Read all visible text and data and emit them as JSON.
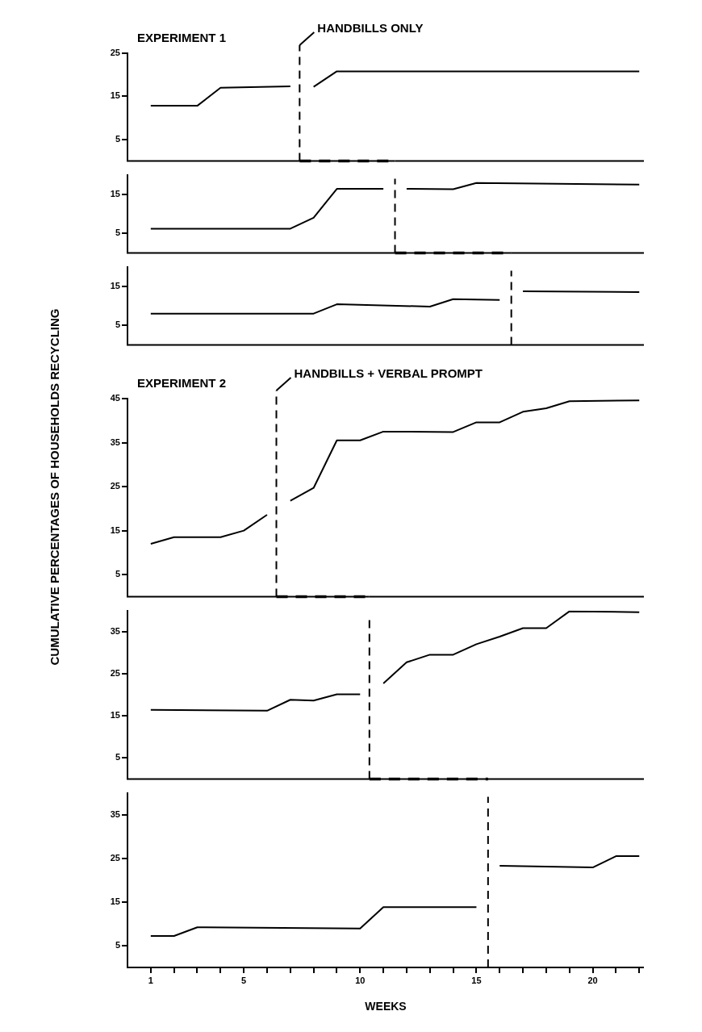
{
  "chart_data": [
    {
      "type": "line",
      "title": "EXPERIMENT 1",
      "xlim": [
        0,
        22.2
      ],
      "ylim": [
        0,
        25
      ],
      "yticks": [
        5,
        15,
        25
      ],
      "tick_labels": "y",
      "ref_lines": [
        {
          "axis": "x",
          "value": 7.4,
          "label": "HANDBILLS ONLY",
          "line_style": "dashed"
        }
      ],
      "series": [
        {
          "color": "#000000",
          "x": [
            1,
            3,
            4,
            7
          ],
          "values": [
            12.8,
            12.8,
            17,
            17.3
          ]
        },
        {
          "color": "#000000",
          "x": [
            8,
            9,
            22
          ],
          "values": [
            17.2,
            20.8,
            20.8
          ]
        }
      ]
    },
    {
      "type": "line",
      "xlim": [
        0,
        22.2
      ],
      "ylim": [
        0,
        20
      ],
      "yticks": [
        5,
        15
      ],
      "tick_labels": "y",
      "ref_lines": [
        {
          "axis": "x",
          "value": 11.5,
          "line_style": "dashed"
        }
      ],
      "series": [
        {
          "color": "#000000",
          "x": [
            1,
            7,
            8,
            9,
            11
          ],
          "values": [
            6.2,
            6.2,
            9,
            16.4,
            16.4
          ]
        },
        {
          "color": "#000000",
          "x": [
            12,
            14,
            15,
            22
          ],
          "values": [
            16.4,
            16.3,
            17.9,
            17.5
          ]
        }
      ]
    },
    {
      "type": "line",
      "xlim": [
        0,
        22.2
      ],
      "ylim": [
        0,
        20
      ],
      "yticks": [
        5,
        15
      ],
      "tick_labels": "y",
      "ref_lines": [
        {
          "axis": "x",
          "value": 16.5,
          "line_style": "dashed"
        }
      ],
      "series": [
        {
          "color": "#000000",
          "x": [
            1,
            8,
            9,
            13,
            14,
            16
          ],
          "values": [
            8,
            8,
            10.4,
            9.8,
            11.7,
            11.5
          ]
        },
        {
          "color": "#000000",
          "x": [
            17,
            22
          ],
          "values": [
            13.7,
            13.5
          ]
        }
      ]
    },
    {
      "type": "line",
      "title": "EXPERIMENT 2",
      "ylabel": "CUMULATIVE PERCENTAGES OF HOUSEHOLDS RECYCLING",
      "xlim": [
        0,
        22.2
      ],
      "ylim": [
        0,
        45
      ],
      "yticks": [
        5,
        15,
        25,
        35,
        45
      ],
      "tick_labels": "y",
      "ref_lines": [
        {
          "axis": "x",
          "value": 6.4,
          "label": "HANDBILLS + VERBAL PROMPT",
          "line_style": "dashed"
        }
      ],
      "series": [
        {
          "color": "#000000",
          "x": [
            1,
            2,
            4,
            5,
            6
          ],
          "values": [
            12,
            13.5,
            13.5,
            15,
            18.6
          ]
        },
        {
          "color": "#000000",
          "x": [
            7,
            8,
            9,
            10,
            11,
            14,
            15,
            16,
            17,
            18,
            19,
            22
          ],
          "values": [
            21.8,
            24.7,
            35.5,
            35.5,
            37.5,
            37.4,
            39.6,
            39.6,
            42,
            42.8,
            44.4,
            44.6
          ]
        }
      ]
    },
    {
      "type": "line",
      "xlim": [
        0,
        22.2
      ],
      "ylim": [
        0,
        40
      ],
      "yticks": [
        5,
        15,
        25,
        35
      ],
      "tick_labels": "y",
      "ref_lines": [
        {
          "axis": "x",
          "value": 10.4,
          "line_style": "dashed"
        }
      ],
      "series": [
        {
          "color": "#000000",
          "x": [
            1,
            6,
            7,
            8,
            9,
            10
          ],
          "values": [
            16.4,
            16.2,
            18.8,
            18.6,
            20.1,
            20.1
          ]
        },
        {
          "color": "#000000",
          "x": [
            11,
            12,
            13,
            14,
            15,
            16,
            17,
            18,
            19,
            22
          ],
          "values": [
            22.7,
            27.7,
            29.5,
            29.5,
            32,
            33.8,
            35.8,
            35.8,
            39.8,
            39.6
          ]
        }
      ]
    },
    {
      "type": "line",
      "xlabel": "WEEKS",
      "xlim": [
        0,
        22.2
      ],
      "ylim": [
        0,
        40
      ],
      "yticks": [
        5,
        15,
        25,
        35
      ],
      "xticks": [
        1,
        {
          "value": 2,
          "label": null
        },
        {
          "value": 3,
          "label": null
        },
        {
          "value": 4,
          "label": null
        },
        5,
        {
          "value": 6,
          "label": null
        },
        {
          "value": 7,
          "label": null
        },
        {
          "value": 8,
          "label": null
        },
        {
          "value": 9,
          "label": null
        },
        10,
        {
          "value": 11,
          "label": null
        },
        {
          "value": 12,
          "label": null
        },
        {
          "value": 13,
          "label": null
        },
        {
          "value": 14,
          "label": null
        },
        15,
        {
          "value": 16,
          "label": null
        },
        {
          "value": 17,
          "label": null
        },
        {
          "value": 18,
          "label": null
        },
        {
          "value": 19,
          "label": null
        },
        20,
        {
          "value": 21,
          "label": null
        },
        {
          "value": 22,
          "label": null
        }
      ],
      "ref_lines": [
        {
          "axis": "x",
          "value": 15.5,
          "line_style": "dashed"
        }
      ],
      "series": [
        {
          "color": "#000000",
          "x": [
            1,
            2,
            3,
            10,
            11,
            15
          ],
          "values": [
            7.2,
            7.2,
            9.2,
            8.9,
            13.8,
            13.8
          ]
        },
        {
          "color": "#000000",
          "x": [
            16,
            20,
            21,
            22
          ],
          "values": [
            23.3,
            22.9,
            25.5,
            25.5
          ]
        }
      ]
    }
  ]
}
